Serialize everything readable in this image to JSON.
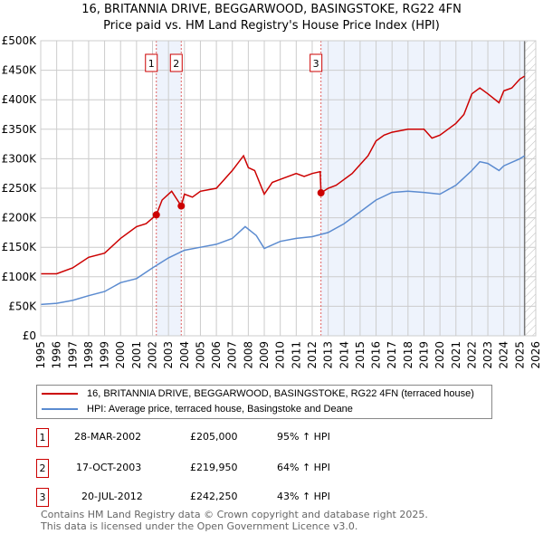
{
  "title": "16, BRITANNIA DRIVE, BEGGARWOOD, BASINGSTOKE, RG22 4FN",
  "subtitle": "Price paid vs. HM Land Registry's House Price Index (HPI)",
  "chart_data": {
    "type": "line",
    "xlim": [
      1995,
      2026
    ],
    "ylim": [
      0,
      500000
    ],
    "yticks": [
      0,
      50000,
      100000,
      150000,
      200000,
      250000,
      300000,
      350000,
      400000,
      450000,
      500000
    ],
    "ytick_labels": [
      "£0",
      "£50K",
      "£100K",
      "£150K",
      "£200K",
      "£250K",
      "£300K",
      "£350K",
      "£400K",
      "£450K",
      "£500K"
    ],
    "xticks": [
      1995,
      1996,
      1997,
      1998,
      1999,
      2000,
      2001,
      2002,
      2003,
      2004,
      2005,
      2006,
      2007,
      2008,
      2009,
      2010,
      2011,
      2012,
      2013,
      2014,
      2015,
      2016,
      2017,
      2018,
      2019,
      2020,
      2021,
      2022,
      2023,
      2024,
      2025,
      2026
    ],
    "grid": true,
    "series": [
      {
        "name": "16, BRITANNIA DRIVE, BEGGARWOOD, BASINGSTOKE, RG22 4FN (terraced house)",
        "color": "#cc0000",
        "x": [
          1995,
          1996,
          1997,
          1998,
          1999,
          2000,
          2001,
          2001.6,
          2002.24,
          2002.6,
          2003.2,
          2003.8,
          2004,
          2004.5,
          2005,
          2006,
          2006.5,
          2007,
          2007.7,
          2008,
          2008.4,
          2009,
          2009.5,
          2010,
          2011,
          2011.5,
          2012,
          2012.5,
          2012.55,
          2013,
          2013.5,
          2014,
          2014.5,
          2015,
          2015.5,
          2016,
          2016.5,
          2017,
          2018,
          2019,
          2019.5,
          2020,
          2020.5,
          2021,
          2021.5,
          2022,
          2022.5,
          2023,
          2023.7,
          2024,
          2024.5,
          2025,
          2025.3
        ],
        "y": [
          105000,
          105000,
          115000,
          133000,
          140000,
          165000,
          185000,
          190000,
          205000,
          230000,
          245000,
          219950,
          240000,
          235000,
          245000,
          250000,
          265000,
          280000,
          305000,
          285000,
          280000,
          240000,
          260000,
          265000,
          275000,
          270000,
          275000,
          278000,
          242250,
          250000,
          255000,
          265000,
          275000,
          290000,
          305000,
          330000,
          340000,
          345000,
          350000,
          350000,
          335000,
          340000,
          350000,
          360000,
          375000,
          410000,
          420000,
          410000,
          395000,
          415000,
          420000,
          435000,
          440000
        ]
      },
      {
        "name": "HPI: Average price, terraced house, Basingstoke and Deane",
        "color": "#5b8bd0",
        "x": [
          1995,
          1996,
          1997,
          1998,
          1999,
          2000,
          2001,
          2002,
          2003,
          2004,
          2005,
          2006,
          2007,
          2007.8,
          2008.5,
          2009,
          2010,
          2011,
          2012,
          2013,
          2014,
          2015,
          2016,
          2017,
          2018,
          2019,
          2020,
          2021,
          2022,
          2022.5,
          2023,
          2023.7,
          2024,
          2025,
          2025.3
        ],
        "y": [
          53000,
          55000,
          60000,
          68000,
          75000,
          90000,
          97000,
          115000,
          132000,
          145000,
          150000,
          155000,
          165000,
          185000,
          170000,
          148000,
          160000,
          165000,
          168000,
          175000,
          190000,
          210000,
          230000,
          243000,
          245000,
          243000,
          240000,
          255000,
          280000,
          295000,
          292000,
          280000,
          288000,
          300000,
          305000
        ]
      }
    ],
    "sales": [
      {
        "id": "1",
        "x": 2002.24,
        "y": 205000
      },
      {
        "id": "2",
        "x": 2003.8,
        "y": 219950
      },
      {
        "id": "3",
        "x": 2012.55,
        "y": 242250
      }
    ],
    "forecast_from": 2025.3
  },
  "legend": {
    "property": "16, BRITANNIA DRIVE, BEGGARWOOD, BASINGSTOKE, RG22 4FN (terraced house)",
    "hpi": "HPI: Average price, terraced house, Basingstoke and Deane"
  },
  "transactions": [
    {
      "id": "1",
      "date": "28-MAR-2002",
      "price": "£205,000",
      "hpi": "95% ↑ HPI"
    },
    {
      "id": "2",
      "date": "17-OCT-2003",
      "price": "£219,950",
      "hpi": "64% ↑ HPI"
    },
    {
      "id": "3",
      "date": "20-JUL-2012",
      "price": "£242,250",
      "hpi": "43% ↑ HPI"
    }
  ],
  "footer": [
    "Contains HM Land Registry data © Crown copyright and database right 2025.",
    "This data is licensed under the Open Government Licence v3.0."
  ]
}
